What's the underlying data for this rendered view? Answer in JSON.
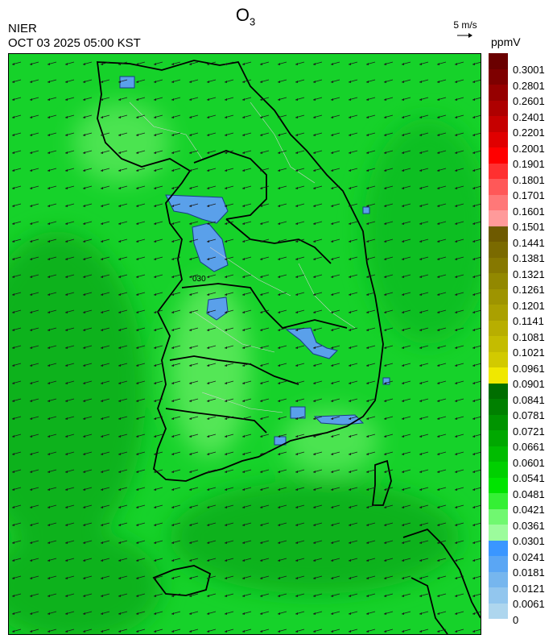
{
  "header": {
    "title_main": "O",
    "title_sub": "3",
    "org": "NIER",
    "timestamp": "OCT 03 2025 05:00 KST",
    "ref_vector_label": "5 m/s",
    "unit": "ppmV"
  },
  "map": {
    "contour_label": "030",
    "colors": {
      "background": "#16d22a",
      "deep_green": "#0ab21f",
      "light_green": "#6ef06a",
      "low_ozone": "#5aa0ea",
      "coast": "#000000",
      "admin_lines": "#cfcfcf"
    }
  },
  "colorbar": {
    "labels": [
      "0.3001",
      "0.2801",
      "0.2601",
      "0.2401",
      "0.2201",
      "0.2001",
      "0.1901",
      "0.1801",
      "0.1701",
      "0.1601",
      "0.1501",
      "0.1441",
      "0.1381",
      "0.1321",
      "0.1261",
      "0.1201",
      "0.1141",
      "0.1081",
      "0.1021",
      "0.0961",
      "0.0901",
      "0.0841",
      "0.0781",
      "0.0721",
      "0.0661",
      "0.0601",
      "0.0541",
      "0.0481",
      "0.0421",
      "0.0361",
      "0.0301",
      "0.0241",
      "0.0181",
      "0.0121",
      "0.0061",
      "0"
    ],
    "colors": [
      "#6a0000",
      "#7e0000",
      "#960000",
      "#ae0000",
      "#c60000",
      "#e00000",
      "#ff0000",
      "#ff3030",
      "#ff5858",
      "#ff7878",
      "#ff9a9a",
      "#6e5a00",
      "#7a6a00",
      "#867800",
      "#928800",
      "#9e9400",
      "#aaa000",
      "#b8ae00",
      "#c4bc00",
      "#d2ca00",
      "#f0e800",
      "#006e00",
      "#008000",
      "#009400",
      "#00a800",
      "#00bc00",
      "#00d000",
      "#00e400",
      "#34f034",
      "#70f870",
      "#9cfc9c",
      "#3a96ff",
      "#5aa6f4",
      "#76b6ee",
      "#92c6ee",
      "#aed6ee"
    ]
  }
}
